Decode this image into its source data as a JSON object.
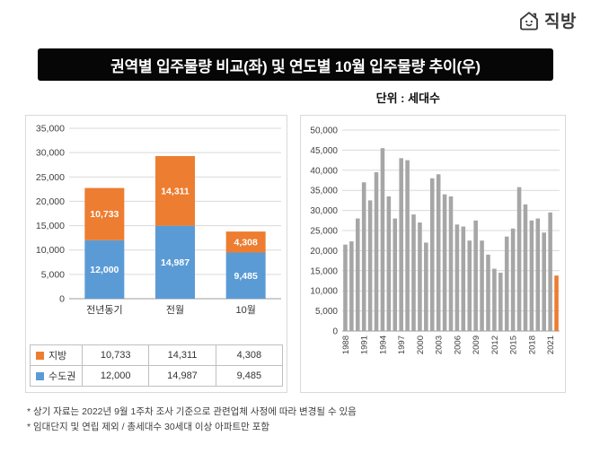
{
  "logo": {
    "brand": "직방"
  },
  "header": {
    "title": "권역별 입주물량 비교(좌) 및 연도별 10월 입주물량 추이(우)",
    "unit_label": "단위 : 세대수"
  },
  "colors": {
    "orange": "#ed7d31",
    "blue": "#5b9bd5",
    "gray_bar": "#a6a6a6",
    "banner": "#060606"
  },
  "chart_data": [
    {
      "type": "bar",
      "stacked": true,
      "title": "권역별 입주물량 비교",
      "categories": [
        "전년동기",
        "전월",
        "10월"
      ],
      "series": [
        {
          "name": "수도권",
          "color": "#5b9bd5",
          "values": [
            12000,
            14987,
            9485
          ]
        },
        {
          "name": "지방",
          "color": "#ed7d31",
          "values": [
            10733,
            14311,
            4308
          ]
        }
      ],
      "ylim": [
        0,
        35000
      ],
      "ytick_step": 5000,
      "grid": true,
      "legend_position": "bottom-table"
    },
    {
      "type": "bar",
      "title": "연도별 10월 입주물량 추이",
      "x": [
        1988,
        1989,
        1990,
        1991,
        1992,
        1993,
        1994,
        1995,
        1996,
        1997,
        1998,
        1999,
        2000,
        2001,
        2002,
        2003,
        2004,
        2005,
        2006,
        2007,
        2008,
        2009,
        2010,
        2011,
        2012,
        2013,
        2014,
        2015,
        2016,
        2017,
        2018,
        2019,
        2020,
        2021,
        2022
      ],
      "values": [
        21500,
        22300,
        28000,
        37000,
        32500,
        39500,
        45500,
        33500,
        28000,
        43000,
        42500,
        29000,
        27000,
        22000,
        38000,
        39000,
        34000,
        33500,
        26500,
        26000,
        22500,
        27500,
        22500,
        19000,
        15500,
        14500,
        23500,
        25500,
        35800,
        31500,
        27500,
        28000,
        24500,
        29500,
        13793
      ],
      "bar_color": "#a6a6a6",
      "highlight_color": "#ed7d31",
      "highlight_year": 2022,
      "ylim": [
        0,
        50000
      ],
      "ytick_step": 5000,
      "xticks": [
        "1988",
        "1991",
        "1994",
        "1997",
        "2000",
        "2003",
        "2006",
        "2009",
        "2012",
        "2015",
        "2018",
        "2021"
      ],
      "grid": true
    }
  ],
  "footnotes": [
    "* 상기 자료는 2022년 9월 1주차 조사 기준으로 관련업체 사정에 따라 변경될 수 있음",
    "* 임대단지 및 연립 제외 / 총세대수 30세대 이상 아파트만 포함"
  ]
}
